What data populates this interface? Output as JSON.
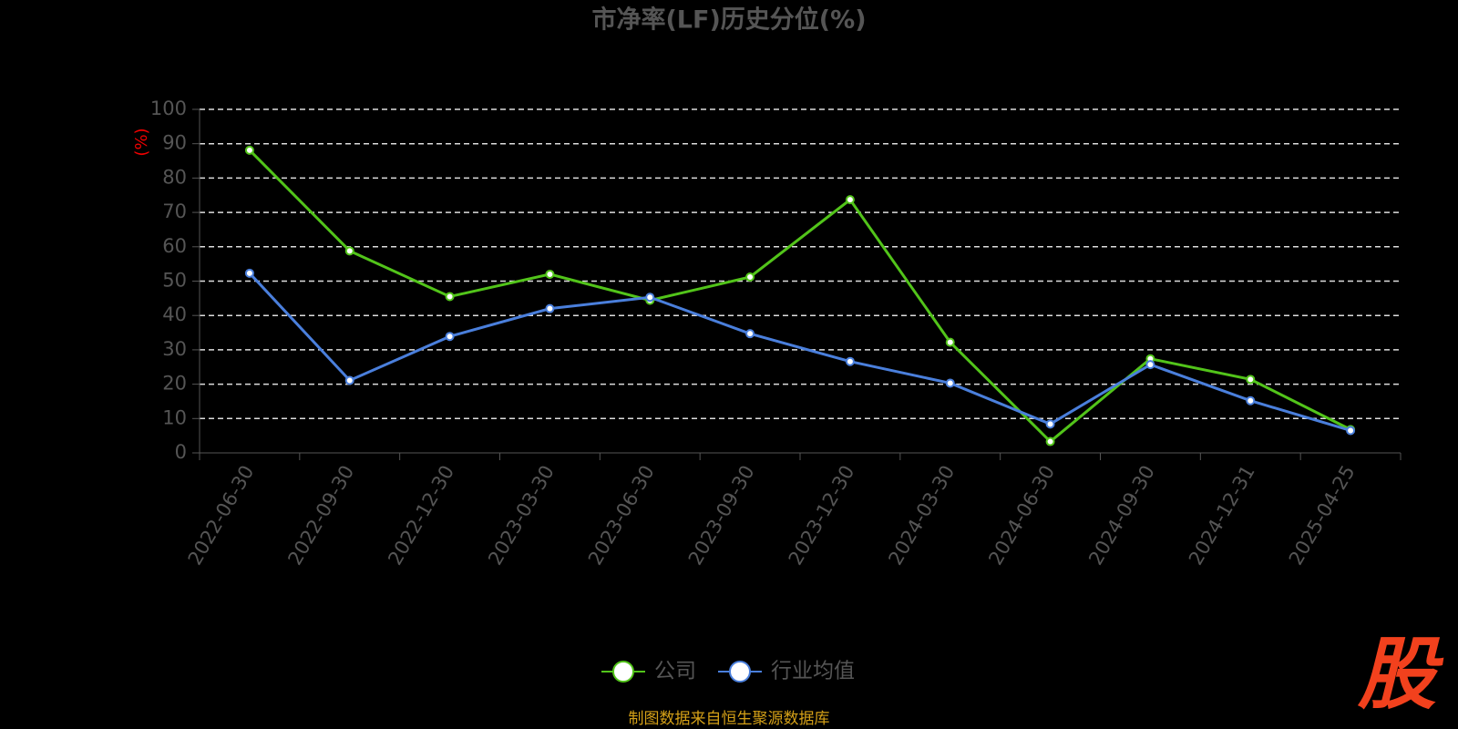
{
  "chart_data": {
    "type": "line",
    "title": "市净率(LF)历史分位(%)",
    "y_label": "(%)",
    "categories": [
      "2022-06-30",
      "2022-09-30",
      "2022-12-30",
      "2023-03-30",
      "2023-06-30",
      "2023-09-30",
      "2023-12-30",
      "2024-03-30",
      "2024-06-30",
      "2024-09-30",
      "2024-12-31",
      "2025-04-25"
    ],
    "series": [
      {
        "name": "公司",
        "color": "#52c41a",
        "values": [
          88.1,
          58.8,
          45.5,
          52,
          44.4,
          51.2,
          73.7,
          32.2,
          3.3,
          27.4,
          21.4,
          6.8
        ]
      },
      {
        "name": "行业均值",
        "color": "#4a7fdc",
        "values": [
          52.3,
          21.1,
          33.9,
          42,
          45.3,
          34.7,
          26.6,
          20.3,
          8.4,
          25.7,
          15.2,
          6.5
        ]
      }
    ],
    "ylim": [
      0,
      100
    ],
    "yticks": [
      0,
      10,
      20,
      30,
      40,
      50,
      60,
      70,
      80,
      90,
      100
    ],
    "grid": true,
    "source": "制图数据来自恒生聚源数据库"
  },
  "logo": "股"
}
